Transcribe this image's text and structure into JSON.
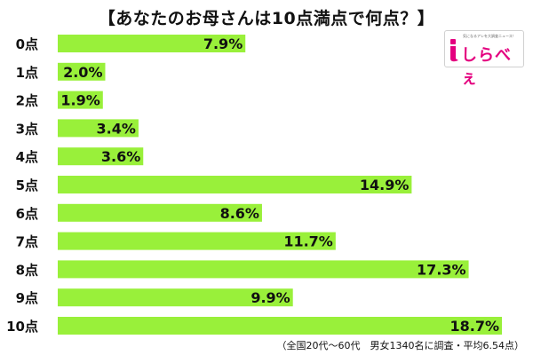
{
  "title": "【あなたのお母さんは10点満点で何点？】",
  "logo": {
    "brand": "しらべぇ",
    "tagline": "気になるアレを大調査ニュース！"
  },
  "footnote": "（全国20代～60代　男女1340名に調査・平均6.54点）",
  "colors": {
    "bar": "#99f03a",
    "brand": "#e4007f"
  },
  "chart_data": {
    "type": "bar",
    "orientation": "horizontal",
    "categories": [
      "0点",
      "1点",
      "2点",
      "3点",
      "4点",
      "5点",
      "6点",
      "7点",
      "8点",
      "9点",
      "10点"
    ],
    "values": [
      7.9,
      2.0,
      1.9,
      3.4,
      3.6,
      14.9,
      8.6,
      11.7,
      17.3,
      9.9,
      18.7
    ],
    "value_labels": [
      "7.9%",
      "2.0%",
      "1.9%",
      "3.4%",
      "3.6%",
      "14.9%",
      "8.6%",
      "11.7%",
      "17.3%",
      "9.9%",
      "18.7%"
    ],
    "unit": "%",
    "xlim": [
      0,
      18.7
    ],
    "grid": false,
    "legend": "none"
  }
}
